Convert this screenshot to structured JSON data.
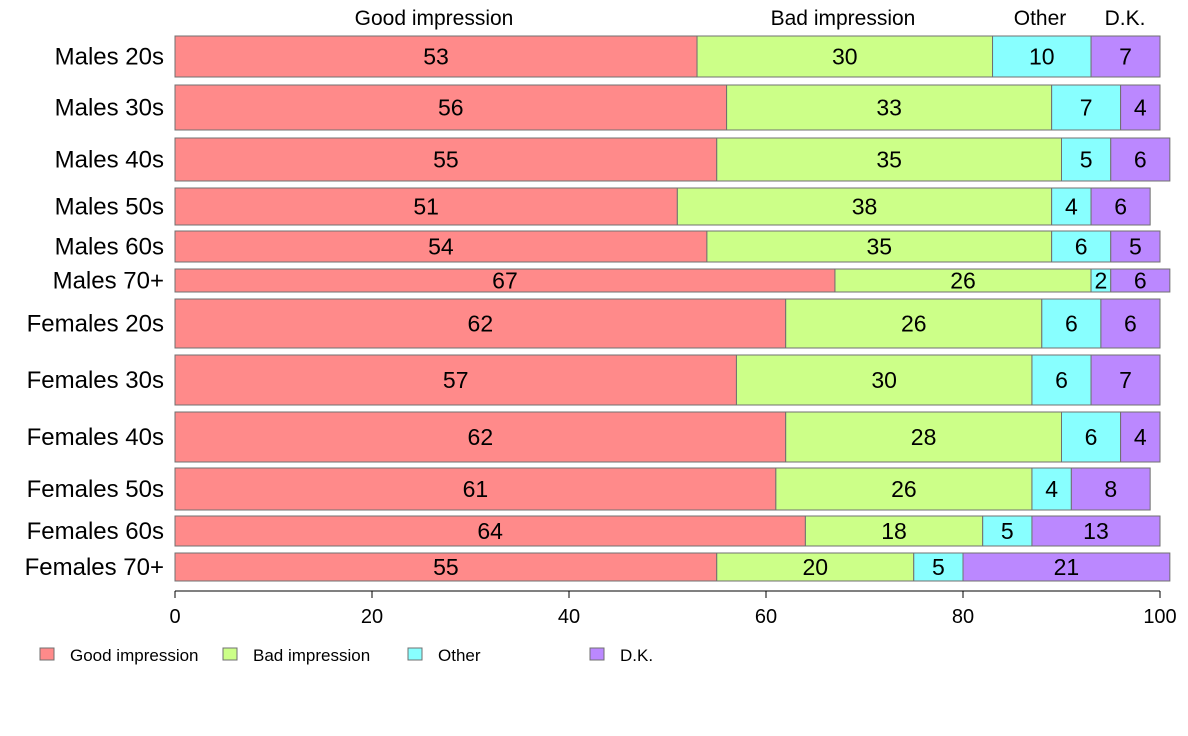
{
  "chart_data": {
    "type": "bar",
    "orientation": "horizontal",
    "stacked": true,
    "title": "",
    "xlabel": "",
    "ylabel": "",
    "xlim": [
      0,
      100
    ],
    "x_ticks": [
      0,
      20,
      40,
      60,
      80,
      100
    ],
    "grid": false,
    "legend": "bottom-left",
    "categories": [
      "Males 20s",
      "Males 30s",
      "Males 40s",
      "Males 50s",
      "Males 60s",
      "Males 70+",
      "Females 20s",
      "Females 30s",
      "Females 40s",
      "Females 50s",
      "Females 60s",
      "Females 70+"
    ],
    "series": [
      {
        "name": "Good impression",
        "color": "#ff8a8a",
        "values": [
          53,
          56,
          55,
          51,
          54,
          67,
          62,
          57,
          62,
          61,
          64,
          55
        ]
      },
      {
        "name": "Bad impression",
        "color": "#ccff88",
        "values": [
          30,
          33,
          35,
          38,
          35,
          26,
          26,
          30,
          28,
          26,
          18,
          20
        ]
      },
      {
        "name": "Other",
        "color": "#88ffff",
        "values": [
          10,
          7,
          5,
          4,
          6,
          2,
          6,
          6,
          6,
          4,
          5,
          5
        ]
      },
      {
        "name": "D.K.",
        "color": "#bb88ff",
        "values": [
          7,
          4,
          6,
          6,
          5,
          6,
          6,
          7,
          4,
          8,
          13,
          21
        ]
      }
    ],
    "top_labels": [
      "Good impression",
      "Bad impression",
      "Other",
      "D.K."
    ]
  }
}
